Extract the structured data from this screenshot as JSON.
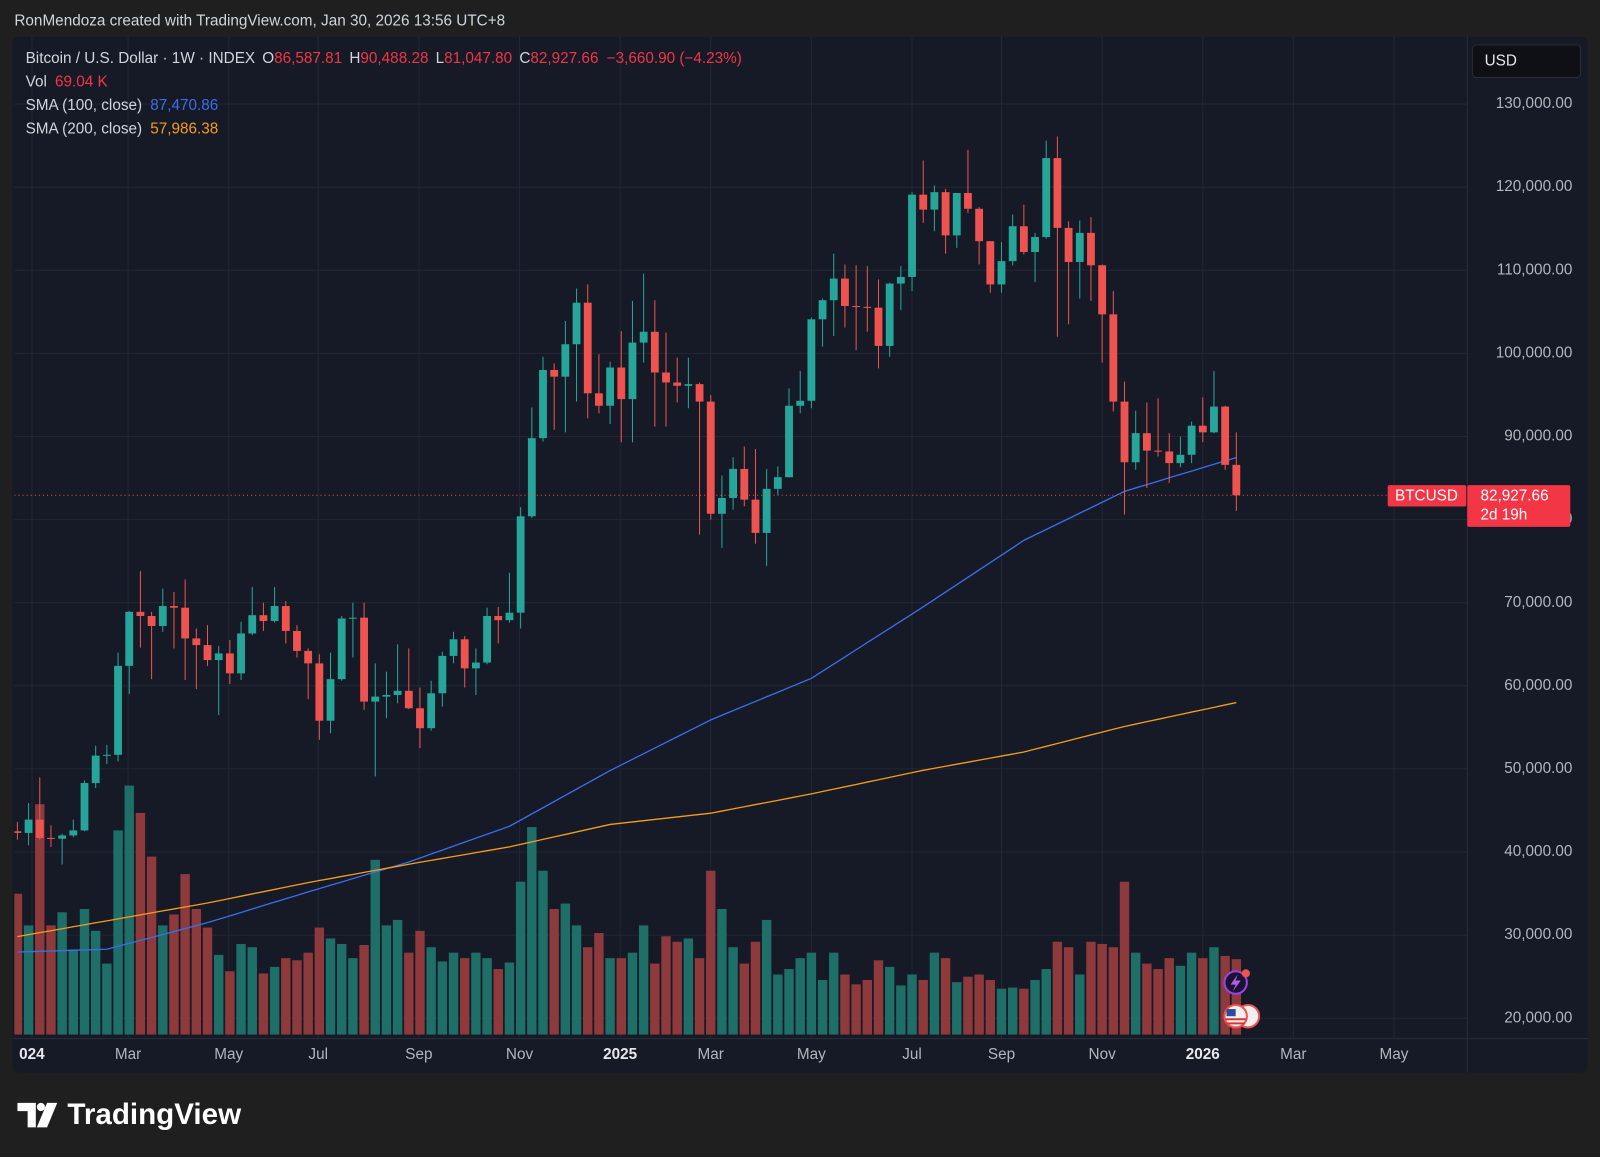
{
  "chart_data": {
    "type": "candlestick",
    "header": "RonMendoza created with TradingView.com, Jan 30, 2026 13:56 UTC+8",
    "footer": "TradingView",
    "currency": "USD",
    "legend": {
      "symbol": "Bitcoin / U.S. Dollar · 1W · INDEX",
      "ohlc": [
        {
          "key": "O",
          "value": "86,587.81"
        },
        {
          "key": "H",
          "value": "90,488.28"
        },
        {
          "key": "L",
          "value": "81,047.80"
        },
        {
          "key": "C",
          "value": "82,927.66"
        }
      ],
      "change": "−3,660.90 (−4.23%)"
    },
    "price_tag": {
      "symbol": "BTCUSD",
      "label": "82,927.66",
      "countdown": "2d 19h"
    },
    "up_color": "#26a69a",
    "down_color": "#ef5350",
    "grid": true,
    "xlim": [
      -0.27,
      129.65
    ],
    "xticks": [
      {
        "value": 1.3,
        "label": "024"
      },
      {
        "value": 9.9,
        "label": "Mar"
      },
      {
        "value": 18.9,
        "label": "May"
      },
      {
        "value": 26.9,
        "label": "Jul"
      },
      {
        "value": 35.9,
        "label": "Sep"
      },
      {
        "value": 44.9,
        "label": "Nov"
      },
      {
        "value": 53.9,
        "label": "2025"
      },
      {
        "value": 62.0,
        "label": "Mar"
      },
      {
        "value": 71.0,
        "label": "May"
      },
      {
        "value": 80.0,
        "label": "Jul"
      },
      {
        "value": 88.0,
        "label": "Sep"
      },
      {
        "value": 97.0,
        "label": "Nov"
      },
      {
        "value": 106.0,
        "label": "2026"
      },
      {
        "value": 114.1,
        "label": "Mar"
      },
      {
        "value": 123.1,
        "label": "May"
      }
    ],
    "ylim": [
      17545,
      138103
    ],
    "yticks": [
      {
        "value": 20000,
        "label": "20,000.00"
      },
      {
        "value": 30000,
        "label": "30,000.00"
      },
      {
        "value": 40000,
        "label": "40,000.00"
      },
      {
        "value": 50000,
        "label": "50,000.00"
      },
      {
        "value": 60000,
        "label": "60,000.00"
      },
      {
        "value": 70000,
        "label": "70,000.00"
      },
      {
        "value": 80000,
        "label": "80,000.00"
      },
      {
        "value": 90000,
        "label": "90,000.00"
      },
      {
        "value": 100000,
        "label": "100,000.00"
      },
      {
        "value": 110000,
        "label": "110,000.00"
      },
      {
        "value": 120000,
        "label": "120,000.00"
      },
      {
        "value": 130000,
        "label": "130,000.00"
      }
    ],
    "open": [
      42500,
      42300,
      43900,
      41700,
      41600,
      42000,
      42600,
      48300,
      51600,
      51700,
      62400,
      68900,
      68400,
      67200,
      69600,
      69400,
      65700,
      64900,
      63100,
      63900,
      61500,
      66300,
      68500,
      67800,
      69600,
      66600,
      64200,
      62700,
      55800,
      60800,
      68100,
      68200,
      58100,
      58700,
      58900,
      59400,
      57300,
      54900,
      59100,
      63600,
      65600,
      62100,
      62800,
      68400,
      67900,
      68800,
      80400,
      89800,
      98000,
      97200,
      101100,
      106100,
      95200,
      93700,
      98300,
      94500,
      101300,
      102600,
      97700,
      96500,
      96100,
      96300,
      94200,
      80700,
      82600,
      86100,
      82400,
      78400,
      83700,
      85100,
      93700,
      94300,
      104100,
      106400,
      109000,
      105700,
      105600,
      105500,
      100900,
      108400,
      109200,
      119100,
      117300,
      119400,
      114200,
      119300,
      117400,
      113500,
      108300,
      111100,
      115300,
      112200,
      114000,
      123500,
      115100,
      111000,
      114500,
      110600,
      104700,
      94200,
      86900,
      90400,
      88300,
      88200,
      86800,
      87800,
      91300,
      90500,
      93600,
      86587.81
    ],
    "high": [
      43600,
      45900,
      49000,
      43200,
      42200,
      43900,
      48600,
      52800,
      52900,
      64000,
      69000,
      73800,
      68900,
      71700,
      71300,
      72800,
      66900,
      67300,
      64800,
      65500,
      67700,
      71900,
      70000,
      71900,
      70200,
      67300,
      64500,
      63800,
      64000,
      68400,
      70000,
      70000,
      62700,
      61700,
      65000,
      64500,
      59800,
      60600,
      64100,
      66500,
      66000,
      64500,
      69400,
      69500,
      73600,
      81500,
      93500,
      99600,
      98800,
      103900,
      107800,
      108300,
      99900,
      99000,
      102700,
      106300,
      109600,
      106400,
      102500,
      99500,
      99500,
      96500,
      95000,
      85300,
      87500,
      88800,
      88500,
      86100,
      86400,
      95800,
      97900,
      104300,
      106600,
      112000,
      110700,
      110600,
      110500,
      108900,
      108500,
      110500,
      119400,
      123200,
      120200,
      119800,
      119300,
      124500,
      117600,
      113500,
      113400,
      116700,
      117900,
      114500,
      125600,
      126100,
      115900,
      116000,
      116400,
      110700,
      107500,
      96600,
      93100,
      94100,
      94600,
      90400,
      90000,
      91800,
      94700,
      97900,
      93700,
      90488.28
    ],
    "low": [
      41500,
      40800,
      41500,
      40600,
      38500,
      41800,
      42500,
      47700,
      50600,
      50900,
      59000,
      64600,
      60800,
      66500,
      64500,
      60700,
      59600,
      62400,
      56500,
      60200,
      60700,
      66100,
      66600,
      67600,
      65100,
      63400,
      58400,
      53500,
      54300,
      60600,
      63400,
      57100,
      49100,
      56100,
      57900,
      57200,
      52500,
      54600,
      57500,
      62700,
      59800,
      58900,
      62600,
      65100,
      67600,
      66900,
      80200,
      89400,
      90800,
      90500,
      94200,
      92200,
      92800,
      91500,
      89300,
      89300,
      98900,
      91200,
      91200,
      94100,
      93400,
      78200,
      80000,
      76600,
      81200,
      81600,
      77100,
      74400,
      83000,
      85100,
      92800,
      93400,
      100800,
      102100,
      103100,
      100400,
      102600,
      98200,
      99600,
      105200,
      107500,
      115700,
      114700,
      112000,
      112700,
      116900,
      110700,
      107300,
      107300,
      110600,
      111900,
      108600,
      113800,
      102000,
      103500,
      106600,
      106300,
      98900,
      93000,
      80600,
      86000,
      83800,
      87600,
      84400,
      86300,
      86800,
      89300,
      90400,
      86000,
      81047.8
    ],
    "close": [
      42300,
      43900,
      41700,
      41600,
      42000,
      42600,
      48300,
      51600,
      51700,
      62400,
      68900,
      68400,
      67200,
      69600,
      69400,
      65700,
      64900,
      63100,
      63900,
      61500,
      66300,
      68500,
      67800,
      69600,
      66600,
      64200,
      62700,
      55800,
      60800,
      68100,
      68200,
      58100,
      58700,
      58900,
      59400,
      57300,
      54900,
      59100,
      63600,
      65600,
      62100,
      62800,
      68400,
      67900,
      68800,
      80400,
      89800,
      98000,
      97200,
      101100,
      106100,
      95200,
      93700,
      98300,
      94500,
      101300,
      102600,
      97700,
      96500,
      96100,
      96300,
      94200,
      80700,
      82600,
      86100,
      82400,
      78400,
      83700,
      85100,
      93700,
      94300,
      104100,
      106400,
      109000,
      105700,
      105600,
      105500,
      100900,
      108400,
      109200,
      119100,
      117300,
      119400,
      114200,
      119300,
      117400,
      113500,
      108300,
      111100,
      115300,
      112200,
      114000,
      123500,
      115100,
      111000,
      114500,
      110600,
      104700,
      94200,
      86900,
      90400,
      88300,
      88200,
      86800,
      87800,
      91300,
      90500,
      93600,
      86588.56,
      82927.66
    ],
    "volume": {
      "name": "Vol",
      "label": "69.04 K",
      "up_color": "#1f6f69",
      "down_color": "#8e3a3c",
      "values": [
        129,
        100,
        211,
        100,
        112,
        78,
        115,
        95,
        65,
        187,
        228,
        203,
        163,
        100,
        110,
        147,
        115,
        98,
        73,
        58,
        83,
        80,
        56,
        62,
        70,
        68,
        75,
        98,
        88,
        83,
        70,
        82,
        160,
        100,
        105,
        75,
        95,
        80,
        67,
        75,
        70,
        75,
        70,
        60,
        66,
        140,
        190,
        150,
        115,
        120,
        100,
        80,
        93,
        70,
        70,
        75,
        100,
        65,
        90,
        85,
        88,
        70,
        150,
        115,
        80,
        65,
        85,
        105,
        55,
        60,
        70,
        75,
        50,
        75,
        55,
        46,
        50,
        68,
        62,
        45,
        55,
        50,
        75,
        70,
        48,
        53,
        55,
        50,
        42,
        43,
        42,
        50,
        60,
        85,
        80,
        55,
        85,
        83,
        80,
        140,
        75,
        65,
        60,
        70,
        63,
        75,
        70,
        80,
        72,
        69.04
      ]
    },
    "series": [
      {
        "name": "SMA (100, close)",
        "label": "87,470.86",
        "color": "#3b6ee8",
        "values": [
          27970,
          28010,
          28050,
          28090,
          28130,
          28170,
          28220,
          28260,
          28300,
          28660,
          29010,
          29370,
          29720,
          30080,
          30430,
          30790,
          31140,
          31500,
          31910,
          32320,
          32730,
          33140,
          33560,
          33970,
          34380,
          34790,
          35200,
          35600,
          36000,
          36400,
          36800,
          37200,
          37600,
          38000,
          38400,
          38800,
          39280,
          39760,
          40230,
          40710,
          41190,
          41670,
          42140,
          42620,
          43100,
          43840,
          44590,
          45330,
          46080,
          46820,
          47570,
          48310,
          49060,
          49800,
          50480,
          51160,
          51830,
          52510,
          53190,
          53870,
          54540,
          55220,
          55900,
          56460,
          57010,
          57570,
          58120,
          58680,
          59230,
          59790,
          60340,
          60900,
          61760,
          62620,
          63480,
          64340,
          65200,
          66060,
          66920,
          67780,
          68640,
          69500,
          70390,
          71280,
          72170,
          73060,
          73940,
          74830,
          75720,
          76610,
          77500,
          78160,
          78810,
          79470,
          80120,
          80780,
          81430,
          82090,
          82740,
          83400,
          83810,
          84210,
          84620,
          85030,
          85440,
          85840,
          86250,
          86660,
          87060,
          87470.86
        ]
      },
      {
        "name": "SMA (200, close)",
        "label": "57,986.38",
        "color": "#f59c1a",
        "values": [
          29820,
          30060,
          30300,
          30530,
          30770,
          31010,
          31250,
          31490,
          31720,
          31960,
          32200,
          32440,
          32680,
          32920,
          33150,
          33390,
          33630,
          33870,
          34140,
          34410,
          34690,
          34960,
          35230,
          35500,
          35780,
          36050,
          36320,
          36570,
          36810,
          37060,
          37300,
          37550,
          37790,
          38040,
          38280,
          38530,
          38770,
          39000,
          39230,
          39460,
          39690,
          39930,
          40160,
          40390,
          40620,
          40920,
          41220,
          41520,
          41820,
          42120,
          42420,
          42720,
          43020,
          43320,
          43470,
          43620,
          43770,
          43920,
          44070,
          44220,
          44370,
          44520,
          44670,
          44930,
          45190,
          45450,
          45710,
          45960,
          46220,
          46480,
          46740,
          47000,
          47280,
          47570,
          47850,
          48130,
          48420,
          48700,
          48980,
          49270,
          49550,
          49830,
          50080,
          50320,
          50570,
          50810,
          51060,
          51300,
          51550,
          51790,
          52040,
          52380,
          52720,
          53060,
          53400,
          53750,
          54090,
          54430,
          54770,
          55110,
          55400,
          55690,
          55970,
          56260,
          56550,
          56840,
          57120,
          57410,
          57700,
          57986.38
        ]
      }
    ]
  }
}
